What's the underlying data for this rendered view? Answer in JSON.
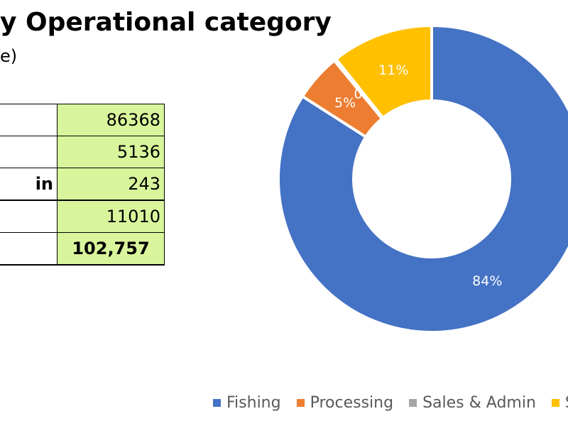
{
  "title": "y Operational category",
  "subtitle": "e)",
  "table": {
    "rows": [
      {
        "label": "",
        "value": "86368"
      },
      {
        "label": "",
        "value": "5136"
      },
      {
        "label": "in",
        "value": "243"
      },
      {
        "label": "",
        "value": "11010"
      },
      {
        "label": "",
        "value": "102,757"
      }
    ]
  },
  "colors": {
    "fishing": "#4472c4",
    "processing": "#ed7d31",
    "sales_admin": "#a5a5a5",
    "fourth": "#ffc000",
    "table_fill": "#d9f59c"
  },
  "chart_data": {
    "type": "pie",
    "style": "donut",
    "categories": [
      "Fishing",
      "Processing",
      "Sales & Admin",
      "S"
    ],
    "values": [
      86368,
      5136,
      243,
      11010
    ],
    "data_labels": [
      "84%",
      "5%",
      "0%",
      "11%"
    ],
    "legend_position": "bottom"
  },
  "legend": {
    "items": [
      {
        "label": "Fishing"
      },
      {
        "label": "Processing"
      },
      {
        "label": "Sales & Admin"
      },
      {
        "label": "S"
      }
    ]
  }
}
